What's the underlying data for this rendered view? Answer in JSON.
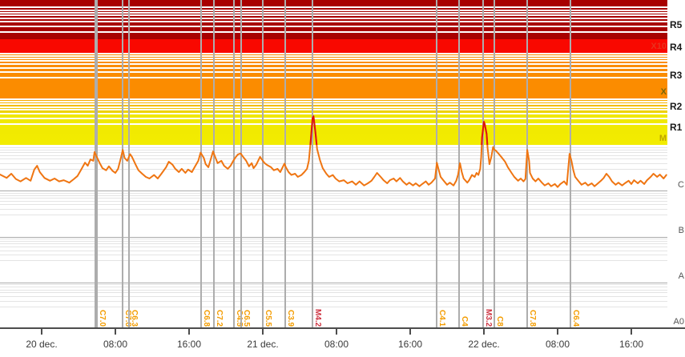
{
  "chart_data": {
    "type": "line",
    "description_visible_text_only": "",
    "x_axis": {
      "tick_labels": [
        "20 dec.",
        "08:00",
        "16:00",
        "21 dec.",
        "08:00",
        "16:00",
        "22 dec.",
        "08:00",
        "16:00"
      ],
      "tick_hours": [
        0,
        8,
        16,
        24,
        32,
        40,
        48,
        56,
        64
      ]
    },
    "y_axis": {
      "scale": "log",
      "in_plot_flux_labels": [
        {
          "label": "X10",
          "color": "#e8321e"
        },
        {
          "label": "X",
          "color": "#77660a"
        },
        {
          "label": "M",
          "color": "#bfa400"
        }
      ],
      "margin_flux_labels": [
        "C",
        "B",
        "A",
        "A0"
      ],
      "risk_labels": [
        "R5",
        "R4",
        "R3",
        "R2",
        "R1"
      ]
    },
    "risk_bands": [
      {
        "label": "R5",
        "color": "#a80100",
        "color2": "#a80100"
      },
      {
        "label": "R4",
        "color": "#f90800",
        "color2": "#f90800"
      },
      {
        "label": "R3",
        "color": "#fb8c00",
        "color2": "#fb8c00"
      },
      {
        "label": "R2",
        "color": "#f9a800",
        "color2": "#eed600"
      },
      {
        "label": "R1",
        "color": "#f0e800",
        "color2": "#f2ec00"
      }
    ],
    "series": [
      {
        "name": "xray-flux",
        "color": "#ef7512",
        "color_above_M": "#dd1111",
        "units": "flux in C-class units (1e-6 W/m2), time in hours since 20 dec. 00:00",
        "points": [
          [
            -4.5,
            2.25
          ],
          [
            -3.8,
            1.9
          ],
          [
            -3.3,
            2.35
          ],
          [
            -2.8,
            1.8
          ],
          [
            -2.3,
            1.6
          ],
          [
            -1.7,
            1.9
          ],
          [
            -1.2,
            1.65
          ],
          [
            -0.8,
            2.9
          ],
          [
            -0.5,
            3.5
          ],
          [
            -0.2,
            2.55
          ],
          [
            0.3,
            1.9
          ],
          [
            0.9,
            1.65
          ],
          [
            1.4,
            1.85
          ],
          [
            1.9,
            1.6
          ],
          [
            2.4,
            1.7
          ],
          [
            3,
            1.5
          ],
          [
            3.5,
            1.8
          ],
          [
            3.9,
            2.1
          ],
          [
            4.3,
            2.9
          ],
          [
            4.7,
            4.1
          ],
          [
            5,
            3.5
          ],
          [
            5.3,
            4.8
          ],
          [
            5.6,
            4.5
          ],
          [
            5.74,
            7
          ],
          [
            5.9,
            5.9
          ],
          [
            6.3,
            4
          ],
          [
            6.6,
            3.1
          ],
          [
            7,
            2.8
          ],
          [
            7.3,
            3.4
          ],
          [
            7.7,
            2.7
          ],
          [
            8,
            2.45
          ],
          [
            8.3,
            3
          ],
          [
            8.6,
            5.2
          ],
          [
            8.8,
            7.8
          ],
          [
            9,
            5.2
          ],
          [
            9.3,
            4.5
          ],
          [
            9.6,
            6.3
          ],
          [
            9.8,
            5.5
          ],
          [
            10.2,
            3.7
          ],
          [
            10.5,
            2.8
          ],
          [
            10.9,
            2.35
          ],
          [
            11.3,
            2
          ],
          [
            11.7,
            1.85
          ],
          [
            12.2,
            2.2
          ],
          [
            12.6,
            1.85
          ],
          [
            13,
            2.35
          ],
          [
            13.5,
            3.25
          ],
          [
            13.8,
            4.3
          ],
          [
            14.2,
            3.7
          ],
          [
            14.5,
            3
          ],
          [
            14.9,
            2.55
          ],
          [
            15.2,
            3
          ],
          [
            15.6,
            2.45
          ],
          [
            15.9,
            2.9
          ],
          [
            16.3,
            2.55
          ],
          [
            16.6,
            3.25
          ],
          [
            17,
            4.5
          ],
          [
            17.25,
            6.8
          ],
          [
            17.6,
            5.2
          ],
          [
            17.8,
            3.8
          ],
          [
            18.1,
            3.25
          ],
          [
            18.3,
            4.5
          ],
          [
            18.6,
            7.2
          ],
          [
            18.9,
            5
          ],
          [
            19.1,
            4
          ],
          [
            19.5,
            4.5
          ],
          [
            19.8,
            3.5
          ],
          [
            20.2,
            3
          ],
          [
            20.5,
            3.5
          ],
          [
            20.8,
            4.5
          ],
          [
            21,
            5.2
          ],
          [
            21.3,
            6.2
          ],
          [
            21.6,
            6.5
          ],
          [
            21.8,
            5.7
          ],
          [
            22.2,
            4.5
          ],
          [
            22.5,
            3.4
          ],
          [
            22.8,
            4
          ],
          [
            23,
            3.1
          ],
          [
            23.3,
            3.7
          ],
          [
            23.7,
            5.5
          ],
          [
            23.9,
            4.8
          ],
          [
            24.2,
            4
          ],
          [
            24.5,
            3.6
          ],
          [
            24.9,
            3.25
          ],
          [
            25.2,
            2.8
          ],
          [
            25.6,
            3
          ],
          [
            25.9,
            2.55
          ],
          [
            26.35,
            3.9
          ],
          [
            26.5,
            3.25
          ],
          [
            26.8,
            2.55
          ],
          [
            27.1,
            2.2
          ],
          [
            27.5,
            2.35
          ],
          [
            27.8,
            2
          ],
          [
            28.2,
            2.2
          ],
          [
            28.5,
            2.55
          ],
          [
            28.8,
            3
          ],
          [
            29,
            4.5
          ],
          [
            29.2,
            12
          ],
          [
            29.4,
            38
          ],
          [
            29.5,
            42
          ],
          [
            29.7,
            19.5
          ],
          [
            29.9,
            8.1
          ],
          [
            30.2,
            4.7
          ],
          [
            30.5,
            3.1
          ],
          [
            30.9,
            2.35
          ],
          [
            31.2,
            2
          ],
          [
            31.6,
            2.2
          ],
          [
            31.9,
            1.85
          ],
          [
            32.3,
            1.6
          ],
          [
            32.8,
            1.7
          ],
          [
            33.2,
            1.45
          ],
          [
            33.7,
            1.6
          ],
          [
            34.1,
            1.35
          ],
          [
            34.5,
            1.6
          ],
          [
            35,
            1.3
          ],
          [
            35.4,
            1.45
          ],
          [
            35.8,
            1.65
          ],
          [
            36.1,
            2
          ],
          [
            36.4,
            2.45
          ],
          [
            36.8,
            2
          ],
          [
            37.1,
            1.7
          ],
          [
            37.5,
            1.45
          ],
          [
            37.8,
            1.7
          ],
          [
            38.2,
            1.85
          ],
          [
            38.5,
            1.6
          ],
          [
            38.9,
            1.9
          ],
          [
            39.2,
            1.6
          ],
          [
            39.6,
            1.35
          ],
          [
            39.9,
            1.5
          ],
          [
            40.3,
            1.3
          ],
          [
            40.6,
            1.45
          ],
          [
            41,
            1.25
          ],
          [
            41.3,
            1.4
          ],
          [
            41.7,
            1.6
          ],
          [
            42,
            1.35
          ],
          [
            42.3,
            1.5
          ],
          [
            42.7,
            1.85
          ],
          [
            42.9,
            4.1
          ],
          [
            43.1,
            2.8
          ],
          [
            43.3,
            2
          ],
          [
            43.7,
            1.6
          ],
          [
            44,
            1.35
          ],
          [
            44.3,
            1.5
          ],
          [
            44.7,
            1.3
          ],
          [
            45,
            1.65
          ],
          [
            45.2,
            2.25
          ],
          [
            45.4,
            4
          ],
          [
            45.6,
            2.55
          ],
          [
            45.8,
            1.85
          ],
          [
            46.2,
            1.5
          ],
          [
            46.4,
            1.7
          ],
          [
            46.7,
            2.2
          ],
          [
            47,
            2
          ],
          [
            47.2,
            2.45
          ],
          [
            47.4,
            2.2
          ],
          [
            47.6,
            3
          ],
          [
            47.7,
            5.4
          ],
          [
            47.8,
            14.5
          ],
          [
            48,
            32
          ],
          [
            48.1,
            28
          ],
          [
            48.3,
            17.3
          ],
          [
            48.4,
            8.5
          ],
          [
            48.6,
            3.8
          ],
          [
            48.8,
            5.4
          ],
          [
            49,
            9
          ],
          [
            49.1,
            8
          ],
          [
            49.3,
            7.5
          ],
          [
            49.6,
            6.4
          ],
          [
            49.9,
            5.4
          ],
          [
            50.3,
            4.3
          ],
          [
            50.6,
            3.25
          ],
          [
            51,
            2.45
          ],
          [
            51.3,
            2
          ],
          [
            51.7,
            1.65
          ],
          [
            52,
            1.85
          ],
          [
            52.3,
            1.6
          ],
          [
            52.5,
            1.8
          ],
          [
            52.7,
            7.8
          ],
          [
            52.9,
            4.5
          ],
          [
            53,
            2.45
          ],
          [
            53.3,
            1.85
          ],
          [
            53.6,
            1.6
          ],
          [
            53.9,
            1.85
          ],
          [
            54.3,
            1.5
          ],
          [
            54.6,
            1.3
          ],
          [
            55,
            1.45
          ],
          [
            55.3,
            1.25
          ],
          [
            55.7,
            1.4
          ],
          [
            56,
            1.2
          ],
          [
            56.3,
            1.4
          ],
          [
            56.7,
            1.6
          ],
          [
            57,
            1.35
          ],
          [
            57.3,
            6.4
          ],
          [
            57.5,
            4.5
          ],
          [
            57.7,
            2.8
          ],
          [
            57.9,
            2
          ],
          [
            58.3,
            1.6
          ],
          [
            58.6,
            1.35
          ],
          [
            59,
            1.5
          ],
          [
            59.3,
            1.3
          ],
          [
            59.7,
            1.45
          ],
          [
            60,
            1.25
          ],
          [
            60.3,
            1.4
          ],
          [
            60.7,
            1.65
          ],
          [
            61,
            1.9
          ],
          [
            61.3,
            2.35
          ],
          [
            61.6,
            2
          ],
          [
            61.9,
            1.6
          ],
          [
            62.3,
            1.35
          ],
          [
            62.6,
            1.5
          ],
          [
            63,
            1.3
          ],
          [
            63.3,
            1.45
          ],
          [
            63.7,
            1.65
          ],
          [
            64,
            1.4
          ],
          [
            64.3,
            1.7
          ],
          [
            64.7,
            1.45
          ],
          [
            65,
            1.65
          ],
          [
            65.4,
            1.4
          ],
          [
            65.7,
            1.7
          ],
          [
            66.1,
            2
          ],
          [
            66.4,
            2.35
          ],
          [
            66.8,
            2
          ],
          [
            67.1,
            2.25
          ],
          [
            67.5,
            1.85
          ],
          [
            67.8,
            2.2
          ]
        ]
      }
    ],
    "flares": [
      {
        "t": 5.74,
        "label": "C7.0",
        "wide_marker": true
      },
      {
        "t": 8.7,
        "label": "C7.8"
      },
      {
        "t": 9.39,
        "label": "C6.3"
      },
      {
        "t": 17.22,
        "label": "C6.8"
      },
      {
        "t": 18.61,
        "label": "C7.2"
      },
      {
        "t": 20.78,
        "label": "C4.5"
      },
      {
        "t": 21.57,
        "label": "C6.5"
      },
      {
        "t": 23.91,
        "label": "C5.5"
      },
      {
        "t": 26.35,
        "label": "C3.9"
      },
      {
        "t": 29.3,
        "label": "M4.2"
      },
      {
        "t": 42.78,
        "label": "C4.1"
      },
      {
        "t": 45.22,
        "label": "C4"
      },
      {
        "t": 47.83,
        "label": "M3.2"
      },
      {
        "t": 49.04,
        "label": "C8"
      },
      {
        "t": 52.61,
        "label": "C7.8"
      },
      {
        "t": 57.3,
        "label": "C6.4"
      }
    ],
    "flare_label_colors": {
      "C": "#f39c00",
      "M": "#cf3644"
    },
    "event_line_color": "#adadad",
    "legend": "none",
    "grid": "log minor + major gridlines"
  }
}
